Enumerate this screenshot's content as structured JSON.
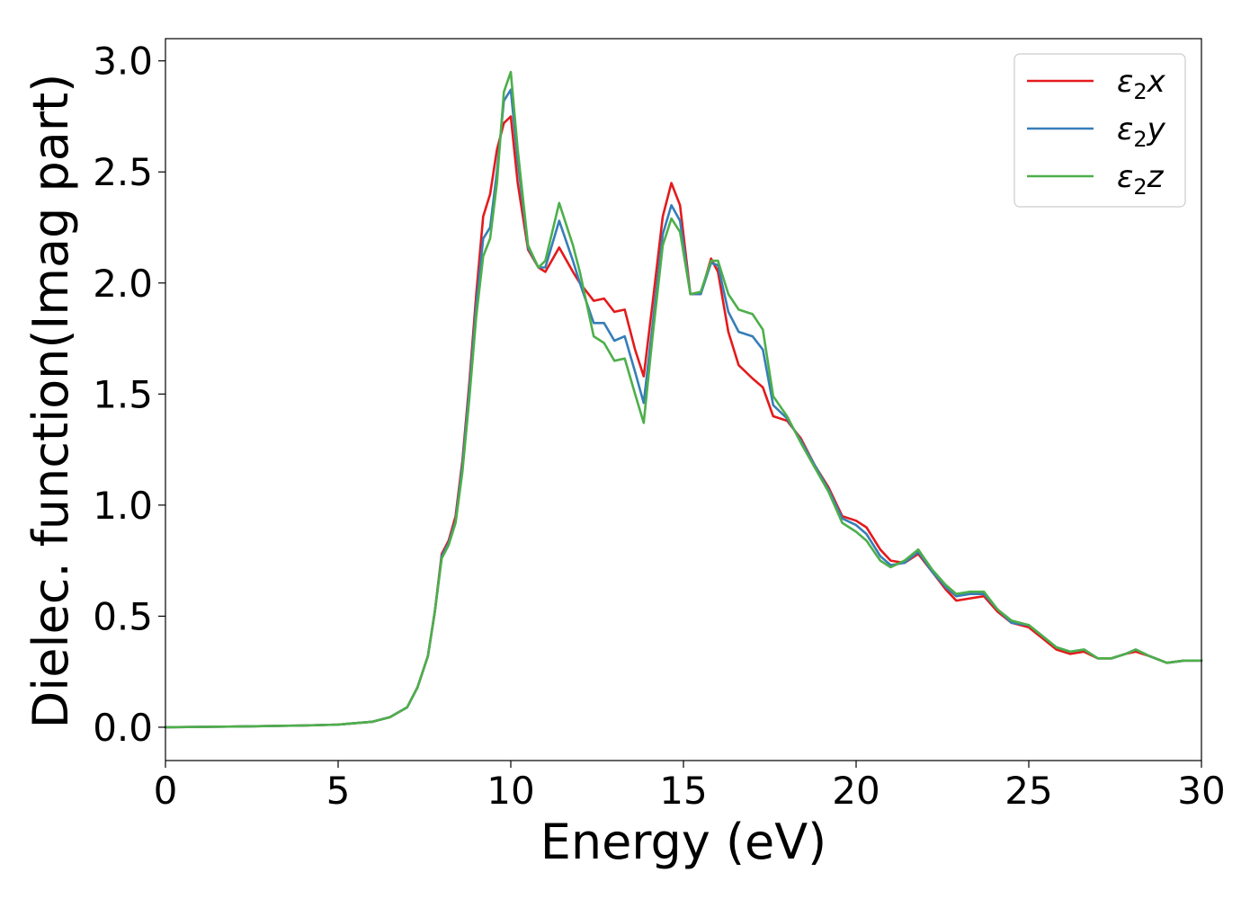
{
  "chart_data": {
    "type": "line",
    "xlabel": "Energy (eV)",
    "ylabel": "Dielec. function(Imag part)",
    "xlim": [
      0,
      30
    ],
    "ylim": [
      -0.15,
      3.1
    ],
    "xticks": [
      "0",
      "5",
      "10",
      "15",
      "20",
      "25",
      "30"
    ],
    "yticks": [
      "0.0",
      "0.5",
      "1.0",
      "1.5",
      "2.0",
      "2.5",
      "3.0"
    ],
    "grid": false,
    "legend_position": "top-right",
    "series": [
      {
        "name": "ε₂x",
        "legend_base": "ε",
        "legend_sub": "2",
        "legend_var": "x",
        "color": "#e41a1c",
        "x": [
          0,
          2,
          4,
          5,
          6,
          6.5,
          7,
          7.3,
          7.6,
          7.8,
          8.0,
          8.2,
          8.4,
          8.6,
          8.8,
          9.0,
          9.2,
          9.4,
          9.6,
          9.8,
          10.0,
          10.2,
          10.5,
          10.8,
          11.0,
          11.4,
          11.8,
          12.0,
          12.4,
          12.7,
          13.0,
          13.3,
          13.6,
          13.85,
          14.1,
          14.4,
          14.65,
          14.9,
          15.2,
          15.5,
          15.8,
          16.0,
          16.3,
          16.6,
          17.0,
          17.3,
          17.6,
          18.0,
          18.4,
          18.8,
          19.2,
          19.6,
          20.0,
          20.3,
          20.7,
          21.0,
          21.4,
          21.8,
          22.2,
          22.6,
          22.9,
          23.3,
          23.7,
          24.1,
          24.5,
          25.0,
          25.4,
          25.8,
          26.2,
          26.6,
          27.0,
          27.4,
          27.8,
          28.1,
          28.5,
          29.0,
          29.5,
          30.0
        ],
        "y": [
          0.0,
          0.003,
          0.008,
          0.012,
          0.025,
          0.045,
          0.09,
          0.18,
          0.32,
          0.52,
          0.78,
          0.84,
          0.95,
          1.2,
          1.55,
          1.95,
          2.3,
          2.4,
          2.6,
          2.72,
          2.75,
          2.45,
          2.15,
          2.07,
          2.05,
          2.16,
          2.05,
          2.0,
          1.92,
          1.93,
          1.87,
          1.88,
          1.7,
          1.58,
          1.9,
          2.3,
          2.45,
          2.35,
          1.95,
          1.95,
          2.11,
          2.05,
          1.78,
          1.63,
          1.57,
          1.53,
          1.4,
          1.38,
          1.3,
          1.18,
          1.08,
          0.95,
          0.93,
          0.9,
          0.8,
          0.75,
          0.74,
          0.78,
          0.7,
          0.62,
          0.57,
          0.58,
          0.59,
          0.52,
          0.47,
          0.45,
          0.4,
          0.35,
          0.33,
          0.34,
          0.31,
          0.31,
          0.33,
          0.34,
          0.32,
          0.29,
          0.3,
          0.3
        ]
      },
      {
        "name": "ε₂y",
        "legend_base": "ε",
        "legend_sub": "2",
        "legend_var": "y",
        "color": "#377eb8",
        "x": [
          0,
          2,
          4,
          5,
          6,
          6.5,
          7,
          7.3,
          7.6,
          7.8,
          8.0,
          8.2,
          8.4,
          8.6,
          8.8,
          9.0,
          9.2,
          9.4,
          9.6,
          9.8,
          10.0,
          10.2,
          10.5,
          10.8,
          11.0,
          11.4,
          11.8,
          12.0,
          12.4,
          12.7,
          13.0,
          13.3,
          13.6,
          13.85,
          14.1,
          14.4,
          14.65,
          14.9,
          15.2,
          15.5,
          15.8,
          16.0,
          16.3,
          16.6,
          17.0,
          17.3,
          17.6,
          18.0,
          18.4,
          18.8,
          19.2,
          19.6,
          20.0,
          20.3,
          20.7,
          21.0,
          21.4,
          21.8,
          22.2,
          22.6,
          22.9,
          23.3,
          23.7,
          24.1,
          24.5,
          25.0,
          25.4,
          25.8,
          26.2,
          26.6,
          27.0,
          27.4,
          27.8,
          28.1,
          28.5,
          29.0,
          29.5,
          30.0
        ],
        "y": [
          0.0,
          0.003,
          0.008,
          0.012,
          0.025,
          0.045,
          0.09,
          0.18,
          0.32,
          0.52,
          0.77,
          0.83,
          0.93,
          1.18,
          1.52,
          1.9,
          2.2,
          2.25,
          2.5,
          2.82,
          2.87,
          2.55,
          2.16,
          2.07,
          2.07,
          2.28,
          2.1,
          2.0,
          1.82,
          1.82,
          1.74,
          1.76,
          1.6,
          1.46,
          1.8,
          2.22,
          2.35,
          2.28,
          1.95,
          1.95,
          2.09,
          2.08,
          1.87,
          1.78,
          1.76,
          1.7,
          1.45,
          1.39,
          1.29,
          1.18,
          1.07,
          0.94,
          0.91,
          0.87,
          0.77,
          0.73,
          0.74,
          0.79,
          0.7,
          0.63,
          0.59,
          0.6,
          0.6,
          0.53,
          0.47,
          0.46,
          0.41,
          0.36,
          0.34,
          0.35,
          0.31,
          0.31,
          0.33,
          0.35,
          0.32,
          0.29,
          0.3,
          0.3
        ]
      },
      {
        "name": "ε₂z",
        "legend_base": "ε",
        "legend_sub": "2",
        "legend_var": "z",
        "color": "#4daf4a",
        "x": [
          0,
          2,
          4,
          5,
          6,
          6.5,
          7,
          7.3,
          7.6,
          7.8,
          8.0,
          8.2,
          8.4,
          8.6,
          8.8,
          9.0,
          9.2,
          9.4,
          9.6,
          9.8,
          10.0,
          10.2,
          10.5,
          10.8,
          11.0,
          11.4,
          11.8,
          12.0,
          12.4,
          12.7,
          13.0,
          13.3,
          13.6,
          13.85,
          14.1,
          14.4,
          14.65,
          14.9,
          15.2,
          15.5,
          15.8,
          16.0,
          16.3,
          16.6,
          17.0,
          17.3,
          17.6,
          18.0,
          18.4,
          18.8,
          19.2,
          19.6,
          20.0,
          20.3,
          20.7,
          21.0,
          21.4,
          21.8,
          22.2,
          22.6,
          22.9,
          23.3,
          23.7,
          24.1,
          24.5,
          25.0,
          25.4,
          25.8,
          26.2,
          26.6,
          27.0,
          27.4,
          27.8,
          28.1,
          28.5,
          29.0,
          29.5,
          30.0
        ],
        "y": [
          0.0,
          0.003,
          0.008,
          0.012,
          0.025,
          0.045,
          0.09,
          0.18,
          0.32,
          0.52,
          0.76,
          0.82,
          0.92,
          1.15,
          1.48,
          1.85,
          2.12,
          2.2,
          2.45,
          2.86,
          2.95,
          2.6,
          2.17,
          2.07,
          2.1,
          2.36,
          2.17,
          2.05,
          1.76,
          1.73,
          1.65,
          1.66,
          1.5,
          1.37,
          1.75,
          2.17,
          2.29,
          2.23,
          1.95,
          1.96,
          2.1,
          2.1,
          1.95,
          1.88,
          1.86,
          1.79,
          1.49,
          1.4,
          1.28,
          1.17,
          1.06,
          0.92,
          0.88,
          0.84,
          0.75,
          0.72,
          0.75,
          0.8,
          0.71,
          0.64,
          0.6,
          0.61,
          0.61,
          0.53,
          0.48,
          0.46,
          0.41,
          0.36,
          0.34,
          0.35,
          0.31,
          0.31,
          0.33,
          0.35,
          0.32,
          0.29,
          0.3,
          0.3
        ]
      }
    ]
  }
}
